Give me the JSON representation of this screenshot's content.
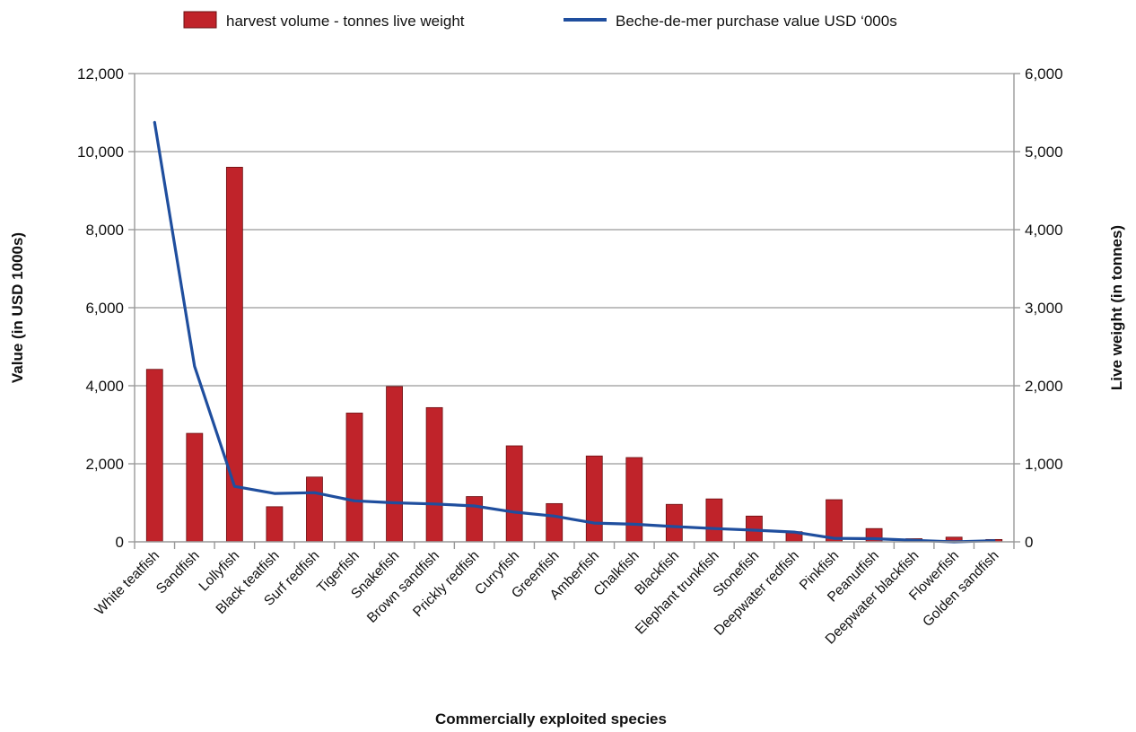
{
  "chart_data": {
    "type": "bar",
    "categories": [
      "White teatfish",
      "Sandfish",
      "Lollyfish",
      "Black teatfish",
      "Surf redfish",
      "Tigerfish",
      "Snakefish",
      "Brown sandfish",
      "Prickly redfish",
      "Curryfish",
      "Greenfish",
      "Amberfish",
      "Chalkfish",
      "Blackfish",
      "Elephant trunkfish",
      "Stonefish",
      "Deepwater redfish",
      "Pinkfish",
      "Peanutfish",
      "Deepwater blackfish",
      "Flowerfish",
      "Golden sandfish"
    ],
    "series": [
      {
        "name": "harvest volume - tonnes live weight",
        "type": "bar",
        "axis": "right",
        "color": "#c0232a",
        "values": [
          2210,
          1390,
          4800,
          450,
          830,
          1650,
          1990,
          1720,
          580,
          1230,
          490,
          1100,
          1080,
          480,
          550,
          330,
          130,
          540,
          170,
          40,
          60,
          30
        ]
      },
      {
        "name": "Beche-de-mer purchase value USD ‘000s",
        "type": "line",
        "axis": "left",
        "color": "#1f4e9e",
        "values": [
          10750,
          4500,
          1420,
          1240,
          1260,
          1050,
          1000,
          970,
          920,
          760,
          660,
          480,
          450,
          390,
          340,
          300,
          250,
          90,
          80,
          40,
          0,
          30
        ]
      }
    ],
    "xlabel": "Commercially exploited species",
    "ylabel": "Value (in USD 1000s)",
    "y2label": "Live weight (in tonnes)",
    "ylim": [
      0,
      12000
    ],
    "y2lim": [
      0,
      6000
    ],
    "yticks": [
      "0",
      "2,000",
      "4,000",
      "6,000",
      "8,000",
      "10,000",
      "12,000"
    ],
    "y2ticks": [
      "0",
      "1,000",
      "2,000",
      "3,000",
      "4,000",
      "5,000",
      "6,000"
    ],
    "grid": true,
    "legend": "top"
  }
}
